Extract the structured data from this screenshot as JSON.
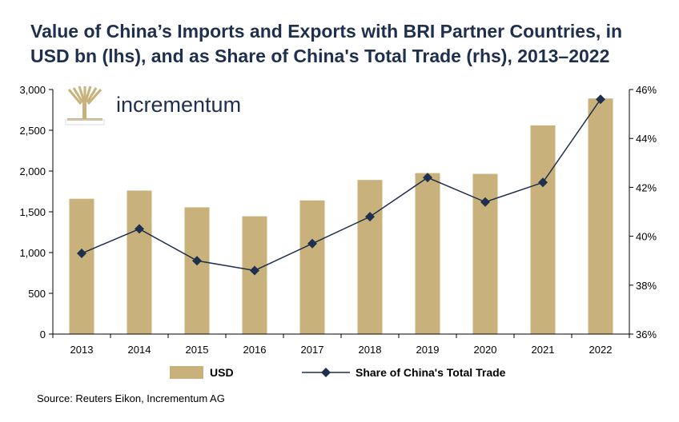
{
  "chart_data": {
    "type": "bar",
    "title_lines": [
      "Value of China’s Imports and Exports with BRI Partner Countries, in",
      "USD bn (lhs), and as Share of China's Total Trade (rhs), 2013–2022"
    ],
    "categories": [
      "2013",
      "2014",
      "2015",
      "2016",
      "2017",
      "2018",
      "2019",
      "2020",
      "2021",
      "2022"
    ],
    "series": [
      {
        "name": "USD",
        "type": "bar",
        "axis": "left",
        "color": "#c8b17a",
        "values": [
          1660,
          1760,
          1555,
          1445,
          1640,
          1890,
          1975,
          1965,
          2560,
          2890
        ]
      },
      {
        "name": "Share of China's Total Trade",
        "type": "line",
        "axis": "right",
        "color": "#1f2f4e",
        "marker": "diamond",
        "values": [
          39.3,
          40.3,
          39.0,
          38.6,
          39.7,
          40.8,
          42.4,
          41.4,
          42.2,
          45.6
        ]
      }
    ],
    "y_left": {
      "min": 0,
      "max": 3000,
      "ticks": [
        0,
        500,
        1000,
        1500,
        2000,
        2500,
        3000
      ],
      "tick_labels": [
        "0",
        "500",
        "1,000",
        "1,500",
        "2,000",
        "2,500",
        "3,000"
      ]
    },
    "y_right": {
      "min": 36,
      "max": 46,
      "ticks": [
        36,
        38,
        40,
        42,
        44,
        46
      ],
      "tick_labels": [
        "36%",
        "38%",
        "40%",
        "42%",
        "44%",
        "46%"
      ]
    },
    "grid": false,
    "legend_position": "bottom"
  },
  "logo": {
    "text": "incrementum",
    "color": "#c8b17a",
    "text_color": "#1f2f4e",
    "icon": "tree-icon"
  },
  "source": "Source: Reuters Eikon, Incrementum AG"
}
